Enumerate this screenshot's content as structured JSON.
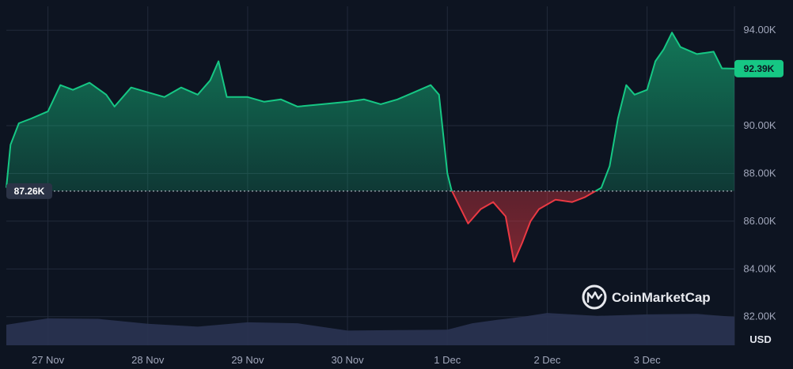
{
  "chart_data": {
    "type": "area",
    "ylabel": "",
    "unit": "USD",
    "ylim": [
      80800,
      95000
    ],
    "y_ticks": [
      {
        "value": 82000,
        "label": "82.00K"
      },
      {
        "value": 84000,
        "label": "84.00K"
      },
      {
        "value": 86000,
        "label": "86.00K"
      },
      {
        "value": 88000,
        "label": "88.00K"
      },
      {
        "value": 90000,
        "label": "90.00K"
      },
      {
        "value": 94000,
        "label": "94.00K"
      }
    ],
    "x_range": [
      "2024-11-26T14:00",
      "2024-12-03T21:00"
    ],
    "x_ticks": [
      {
        "date": "2024-11-27T00:00",
        "label": "27 Nov"
      },
      {
        "date": "2024-11-28T00:00",
        "label": "28 Nov"
      },
      {
        "date": "2024-11-29T00:00",
        "label": "29 Nov"
      },
      {
        "date": "2024-11-30T00:00",
        "label": "30 Nov"
      },
      {
        "date": "2024-12-01T00:00",
        "label": "1 Dec"
      },
      {
        "date": "2024-12-02T00:00",
        "label": "2 Dec"
      },
      {
        "date": "2024-12-03T00:00",
        "label": "3 Dec"
      }
    ],
    "baseline": {
      "value": 87260,
      "label": "87.26K"
    },
    "current": {
      "value": 92390,
      "label": "92.39K"
    },
    "series": [
      {
        "points": [
          [
            "2024-11-26T14:00",
            87400
          ],
          [
            "2024-11-26T15:00",
            89200
          ],
          [
            "2024-11-26T17:00",
            90100
          ],
          [
            "2024-11-26T20:00",
            90300
          ],
          [
            "2024-11-27T00:00",
            90600
          ],
          [
            "2024-11-27T03:00",
            91700
          ],
          [
            "2024-11-27T06:00",
            91500
          ],
          [
            "2024-11-27T10:00",
            91800
          ],
          [
            "2024-11-27T14:00",
            91300
          ],
          [
            "2024-11-27T16:00",
            90800
          ],
          [
            "2024-11-27T20:00",
            91600
          ],
          [
            "2024-11-28T00:00",
            91400
          ],
          [
            "2024-11-28T04:00",
            91200
          ],
          [
            "2024-11-28T08:00",
            91600
          ],
          [
            "2024-11-28T12:00",
            91300
          ],
          [
            "2024-11-28T15:00",
            91900
          ],
          [
            "2024-11-28T17:00",
            92700
          ],
          [
            "2024-11-28T19:00",
            91200
          ],
          [
            "2024-11-29T00:00",
            91200
          ],
          [
            "2024-11-29T04:00",
            91000
          ],
          [
            "2024-11-29T08:00",
            91100
          ],
          [
            "2024-11-29T12:00",
            90800
          ],
          [
            "2024-11-29T18:00",
            90900
          ],
          [
            "2024-11-30T00:00",
            91000
          ],
          [
            "2024-11-30T04:00",
            91100
          ],
          [
            "2024-11-30T08:00",
            90900
          ],
          [
            "2024-11-30T12:00",
            91100
          ],
          [
            "2024-11-30T16:00",
            91400
          ],
          [
            "2024-11-30T20:00",
            91700
          ],
          [
            "2024-11-30T22:00",
            91300
          ],
          [
            "2024-12-01T00:00",
            88000
          ],
          [
            "2024-12-01T01:00",
            87300
          ],
          [
            "2024-12-01T03:00",
            86600
          ],
          [
            "2024-12-01T05:00",
            85900
          ],
          [
            "2024-12-01T08:00",
            86500
          ],
          [
            "2024-12-01T11:00",
            86800
          ],
          [
            "2024-12-01T14:00",
            86200
          ],
          [
            "2024-12-01T16:00",
            84300
          ],
          [
            "2024-12-01T18:00",
            85100
          ],
          [
            "2024-12-01T20:00",
            86000
          ],
          [
            "2024-12-01T22:00",
            86500
          ],
          [
            "2024-12-02T02:00",
            86900
          ],
          [
            "2024-12-02T06:00",
            86800
          ],
          [
            "2024-12-02T09:00",
            87000
          ],
          [
            "2024-12-02T11:00",
            87200
          ],
          [
            "2024-12-02T13:00",
            87400
          ],
          [
            "2024-12-02T15:00",
            88300
          ],
          [
            "2024-12-02T17:00",
            90300
          ],
          [
            "2024-12-02T19:00",
            91700
          ],
          [
            "2024-12-02T21:00",
            91300
          ],
          [
            "2024-12-03T00:00",
            91500
          ],
          [
            "2024-12-03T02:00",
            92700
          ],
          [
            "2024-12-03T04:00",
            93200
          ],
          [
            "2024-12-03T06:00",
            93900
          ],
          [
            "2024-12-03T08:00",
            93300
          ],
          [
            "2024-12-03T12:00",
            93000
          ],
          [
            "2024-12-03T16:00",
            93100
          ],
          [
            "2024-12-03T18:00",
            92400
          ],
          [
            "2024-12-03T21:00",
            92390
          ]
        ]
      }
    ],
    "volume": {
      "ylim": [
        0,
        100
      ],
      "points": [
        [
          "2024-11-26T14:00",
          42
        ],
        [
          "2024-11-27T00:00",
          55
        ],
        [
          "2024-11-27T12:00",
          54
        ],
        [
          "2024-11-28T00:00",
          44
        ],
        [
          "2024-11-28T12:00",
          38
        ],
        [
          "2024-11-29T00:00",
          47
        ],
        [
          "2024-11-29T12:00",
          45
        ],
        [
          "2024-11-30T00:00",
          30
        ],
        [
          "2024-11-30T12:00",
          31
        ],
        [
          "2024-12-01T00:00",
          32
        ],
        [
          "2024-12-01T06:00",
          45
        ],
        [
          "2024-12-01T12:00",
          52
        ],
        [
          "2024-12-01T18:00",
          58
        ],
        [
          "2024-12-02T00:00",
          66
        ],
        [
          "2024-12-02T12:00",
          60
        ],
        [
          "2024-12-03T00:00",
          63
        ],
        [
          "2024-12-03T12:00",
          64
        ],
        [
          "2024-12-03T21:00",
          58
        ]
      ]
    },
    "grid": true,
    "colors": {
      "background": "#0d1421",
      "up": "#16c784",
      "down": "#ea3943",
      "grid": "#222a3b",
      "volume": "#2a3352",
      "badge_up_text": "#0d1421"
    },
    "watermark": "CoinMarketCap"
  }
}
